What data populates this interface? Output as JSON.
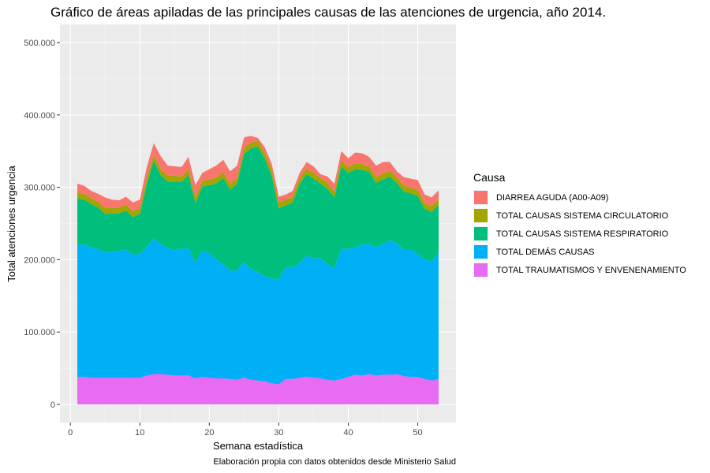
{
  "chart_data": {
    "type": "area",
    "stacked": true,
    "title": "Gráfico de áreas apiladas de las principales causas de las atenciones de urgencia, año 2014.",
    "xlabel": "Semana estadística",
    "ylabel": "Total atenciones urgencia",
    "caption": "Elaboración propia con datos obtenidos desde Ministerio Salud",
    "xlim": [
      -1.5,
      55.5
    ],
    "ylim": [
      -25000,
      525000
    ],
    "xticks": [
      0,
      10,
      20,
      30,
      40,
      50
    ],
    "xtick_labels": [
      "0",
      "10",
      "20",
      "30",
      "40",
      "50"
    ],
    "yticks": [
      0,
      100000,
      200000,
      300000,
      400000,
      500000
    ],
    "ytick_labels": [
      "0",
      "100.000",
      "200.000",
      "300.000",
      "400.000",
      "500.000"
    ],
    "grid": true,
    "legend_position": "right",
    "legend_title": "Causa",
    "x": [
      1,
      2,
      3,
      4,
      5,
      6,
      7,
      8,
      9,
      10,
      11,
      12,
      13,
      14,
      15,
      16,
      17,
      18,
      19,
      20,
      21,
      22,
      23,
      24,
      25,
      26,
      27,
      28,
      29,
      30,
      31,
      32,
      33,
      34,
      35,
      36,
      37,
      38,
      39,
      40,
      41,
      42,
      43,
      44,
      45,
      46,
      47,
      48,
      49,
      50,
      51,
      52,
      53
    ],
    "cumulative_top": [
      305000,
      302000,
      295000,
      291000,
      286000,
      283000,
      282000,
      287000,
      279000,
      283000,
      328000,
      361000,
      343000,
      330000,
      329000,
      328000,
      342000,
      303000,
      320000,
      325000,
      330000,
      338000,
      322000,
      330000,
      369000,
      371000,
      368000,
      355000,
      332000,
      287000,
      290000,
      295000,
      320000,
      335000,
      329000,
      318000,
      315000,
      305000,
      350000,
      340000,
      348000,
      347000,
      342000,
      330000,
      335000,
      335000,
      322000,
      314000,
      312000,
      310000,
      290000,
      286000,
      296000
    ],
    "series": [
      {
        "name": "TOTAL TRAUMATISMOS Y ENVENENAMIENTO",
        "color": "#E76BF3",
        "values": [
          38000,
          38000,
          37000,
          37000,
          37000,
          37000,
          37000,
          37000,
          37000,
          37000,
          40000,
          42000,
          42000,
          41000,
          40000,
          40000,
          40000,
          36000,
          38000,
          37000,
          36000,
          36000,
          35000,
          34000,
          37000,
          34000,
          33000,
          32000,
          29000,
          28000,
          35000,
          35000,
          37000,
          38000,
          37000,
          36000,
          34000,
          33000,
          35000,
          38000,
          41000,
          40000,
          42000,
          40000,
          41000,
          41000,
          42000,
          39000,
          38000,
          38000,
          35000,
          33000,
          35000
        ]
      },
      {
        "name": "TOTAL DEMÁS CAUSAS",
        "color": "#00B0F6",
        "values": [
          182000,
          183000,
          180000,
          178000,
          173000,
          174000,
          175000,
          177000,
          170000,
          171000,
          178000,
          187000,
          180000,
          175000,
          173000,
          175000,
          176000,
          160000,
          175000,
          172000,
          164000,
          158000,
          150000,
          151000,
          160000,
          153000,
          150000,
          145000,
          145000,
          145000,
          155000,
          155000,
          158000,
          168000,
          165000,
          166000,
          160000,
          155000,
          180000,
          177000,
          176000,
          181000,
          180000,
          177000,
          181000,
          186000,
          180000,
          175000,
          176000,
          170000,
          165000,
          165000,
          175000
        ]
      },
      {
        "name": "TOTAL CAUSAS SISTEMA RESPIRATORIO",
        "color": "#00BF7D",
        "values": [
          65000,
          62000,
          60000,
          57000,
          53000,
          53000,
          52000,
          54000,
          52000,
          55000,
          86000,
          108000,
          95000,
          92000,
          95000,
          92000,
          101000,
          82000,
          88000,
          94000,
          105000,
          119000,
          112000,
          120000,
          149000,
          167000,
          173000,
          162000,
          141000,
          98000,
          85000,
          89000,
          110000,
          112000,
          110000,
          103000,
          104000,
          98000,
          114000,
          105000,
          108000,
          103000,
          99000,
          89000,
          89000,
          88000,
          84000,
          80000,
          78000,
          80000,
          70000,
          68000,
          66000
        ]
      },
      {
        "name": "TOTAL CAUSAS SISTEMA CIRCULATORIO",
        "color": "#A3A500",
        "values": [
          8000,
          8000,
          8000,
          8000,
          8000,
          8000,
          8000,
          8000,
          8000,
          8000,
          8000,
          8000,
          8000,
          8000,
          8000,
          8000,
          8000,
          8000,
          8000,
          8000,
          8000,
          8000,
          8000,
          8000,
          8000,
          8000,
          8000,
          8000,
          8000,
          8000,
          8000,
          8000,
          8000,
          8000,
          8000,
          8000,
          8000,
          8000,
          8000,
          8000,
          8000,
          8000,
          8000,
          8000,
          8000,
          8000,
          8000,
          8000,
          8000,
          8000,
          8000,
          8000,
          8000
        ]
      },
      {
        "name": "DIARREA AGUDA (A00-A09)",
        "color": "#F8766D",
        "values": [
          12000,
          11000,
          10000,
          11000,
          15000,
          11000,
          10000,
          11000,
          12000,
          12000,
          16000,
          16000,
          18000,
          14000,
          13000,
          13000,
          17000,
          17000,
          11000,
          14000,
          17000,
          17000,
          17000,
          17000,
          15000,
          9000,
          4000,
          8000,
          9000,
          8000,
          7000,
          8000,
          7000,
          9000,
          9000,
          5000,
          9000,
          11000,
          13000,
          12000,
          15000,
          15000,
          13000,
          16000,
          16000,
          12000,
          8000,
          12000,
          12000,
          14000,
          12000,
          12000,
          12000
        ]
      }
    ],
    "legend_order": [
      "DIARREA AGUDA (A00-A09)",
      "TOTAL CAUSAS SISTEMA CIRCULATORIO",
      "TOTAL CAUSAS SISTEMA RESPIRATORIO",
      "TOTAL DEMÁS CAUSAS",
      "TOTAL TRAUMATISMOS Y ENVENENAMIENTO"
    ]
  }
}
